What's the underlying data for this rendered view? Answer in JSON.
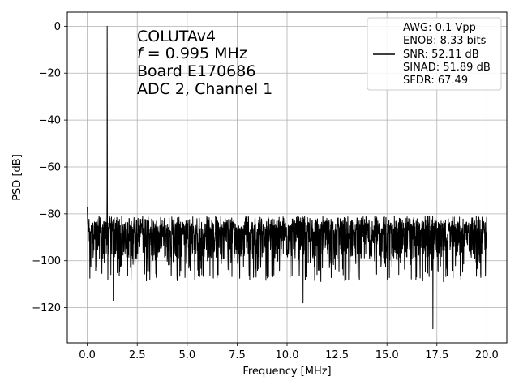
{
  "chart_data": {
    "type": "line",
    "xlabel": "Frequency [MHz]",
    "ylabel": "PSD [dB]",
    "xlim": [
      -1.0,
      21.0
    ],
    "ylim": [
      -135,
      6
    ],
    "xticks": [
      0.0,
      2.5,
      5.0,
      7.5,
      10.0,
      12.5,
      15.0,
      17.5,
      20.0
    ],
    "xtick_labels": [
      "0.0",
      "2.5",
      "5.0",
      "7.5",
      "10.0",
      "12.5",
      "15.0",
      "17.5",
      "20.0"
    ],
    "yticks": [
      0,
      -20,
      -40,
      -60,
      -80,
      -100,
      -120
    ],
    "ytick_labels": [
      "0",
      "−20",
      "−40",
      "−60",
      "−80",
      "−100",
      "−120"
    ],
    "grid": true,
    "legend_placement": "top-right",
    "annotation_lines": [
      "COLUTAv4",
      "f = 0.995 MHz",
      "Board E170686",
      "ADC 2, Channel 1"
    ],
    "annotation_italic_prefix": "f",
    "series": [
      {
        "legend_lines": [
          "AWG: 0.1 Vpp",
          "ENOB: 8.33 bits",
          "SNR: 52.11 dB",
          "SINAD: 51.89 dB",
          "SFDR: 67.49"
        ],
        "color": "#000000",
        "noise_floor_db": -91,
        "peaks": [
          {
            "x": 0.0,
            "y": -77
          },
          {
            "x": 0.995,
            "y": 0
          },
          {
            "x": 0.99,
            "y": -69
          },
          {
            "x": 1.4,
            "y": -97
          },
          {
            "x": 10.8,
            "y": -118
          },
          {
            "x": 17.3,
            "y": -129
          },
          {
            "x": 1.3,
            "y": -117
          }
        ],
        "x_range": [
          0.0,
          20.0
        ]
      }
    ]
  }
}
